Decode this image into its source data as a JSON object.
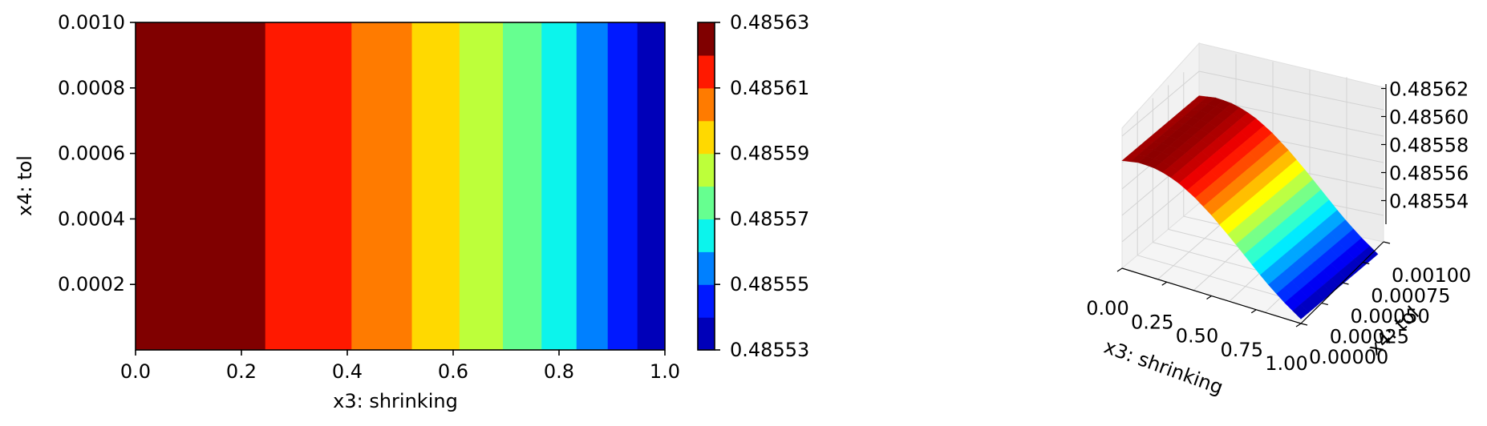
{
  "chart_data": [
    {
      "type": "heatmap",
      "subtype": "filled-contour",
      "xlabel": "x3: shrinking",
      "ylabel": "x4: tol",
      "xlim": [
        0.0,
        1.0
      ],
      "ylim": [
        0.0,
        0.001
      ],
      "x_ticks": [
        "0.0",
        "0.2",
        "0.4",
        "0.6",
        "0.8",
        "1.0"
      ],
      "y_ticks": [
        "0.0002",
        "0.0004",
        "0.0006",
        "0.0008",
        "0.0010"
      ],
      "varies_along": "x",
      "bands": [
        {
          "x_start": 0.0,
          "x_end": 0.245,
          "level": 0.485625,
          "color": "#800000"
        },
        {
          "x_start": 0.245,
          "x_end": 0.408,
          "level": 0.485615,
          "color": "#ff1900"
        },
        {
          "x_start": 0.408,
          "x_end": 0.522,
          "level": 0.485605,
          "color": "#ff7b00"
        },
        {
          "x_start": 0.522,
          "x_end": 0.612,
          "level": 0.485595,
          "color": "#ffd900"
        },
        {
          "x_start": 0.612,
          "x_end": 0.694,
          "level": 0.485585,
          "color": "#bdff3a"
        },
        {
          "x_start": 0.694,
          "x_end": 0.767,
          "level": 0.485575,
          "color": "#66ff90"
        },
        {
          "x_start": 0.767,
          "x_end": 0.833,
          "level": 0.485565,
          "color": "#0cf4ec"
        },
        {
          "x_start": 0.833,
          "x_end": 0.892,
          "level": 0.485555,
          "color": "#0080ff"
        },
        {
          "x_start": 0.892,
          "x_end": 0.948,
          "level": 0.485545,
          "color": "#0019ff"
        },
        {
          "x_start": 0.948,
          "x_end": 1.0,
          "level": 0.485535,
          "color": "#0000b9"
        }
      ],
      "colorbar": {
        "range": [
          0.48553,
          0.48563
        ],
        "levels": [
          0.48553,
          0.48554,
          0.48555,
          0.48556,
          0.48557,
          0.48558,
          0.48559,
          0.4856,
          0.48561,
          0.48562,
          0.48563
        ],
        "colors": [
          "#0000b9",
          "#0019ff",
          "#0080ff",
          "#0cf4ec",
          "#66ff90",
          "#bdff3a",
          "#ffd900",
          "#ff7b00",
          "#ff1900",
          "#800000"
        ],
        "ticks": [
          "0.48553",
          "0.48555",
          "0.48557",
          "0.48559",
          "0.48561",
          "0.48563"
        ]
      },
      "colormap": "jet"
    },
    {
      "type": "surface3d",
      "xlabel": "x3: shrinking",
      "ylabel": "x4: tol",
      "x_ticks": [
        "0.00",
        "0.25",
        "0.50",
        "0.75",
        "1.00"
      ],
      "y_ticks": [
        "0.00000",
        "0.00025",
        "0.00050",
        "0.00075",
        "0.00100"
      ],
      "z_ticks": [
        "0.48554",
        "0.48556",
        "0.48558",
        "0.48560",
        "0.48562"
      ],
      "xlim": [
        0.0,
        1.0
      ],
      "ylim": [
        0.0,
        0.001
      ],
      "zlim": [
        0.48553,
        0.48563
      ],
      "surface_profile": {
        "x": [
          0.0,
          0.1,
          0.2,
          0.3,
          0.4,
          0.5,
          0.6,
          0.7,
          0.8,
          0.9,
          1.0
        ],
        "z": [
          0.485626,
          0.485629,
          0.485628,
          0.485623,
          0.485614,
          0.485602,
          0.485588,
          0.485573,
          0.485558,
          0.485545,
          0.485534
        ]
      },
      "colormap": "jet",
      "grid": true
    }
  ]
}
